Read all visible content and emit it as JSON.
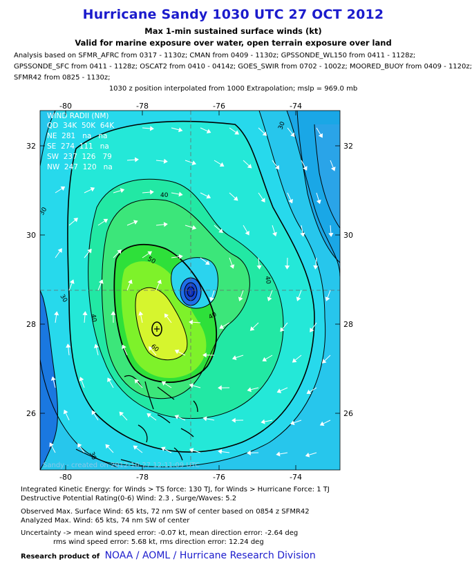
{
  "title": "Hurricane Sandy 1030 UTC 27 OCT 2012",
  "subtitle1": "Max 1-min sustained surface winds (kt)",
  "subtitle2": "Valid for marine exposure over water, open terrain exposure over land",
  "analysis_lines": [
    "Analysis based on SFMR_AFRC from 0317 - 1130z; CMAN from 0409 - 1130z; GPSSONDE_WL150 from 0411 - 1128z;",
    "GPSSONDE_SFC from 0411 - 1128z; OSCAT2 from 0410 - 0414z; GOES_SWIR from 0702 - 1002z; MOORED_BUOY from 0409 - 1120z;",
    "SFMR42 from 0825 - 1130z;"
  ],
  "position_line": "1030 z position interpolated from 1000 Extrapolation; mslp = 969.0 mb",
  "map": {
    "lon_ticks_top": [
      "-80",
      "-78",
      "-76",
      "-74"
    ],
    "lon_ticks_bottom": [
      "-80",
      "-78",
      "-76",
      "-74"
    ],
    "lat_ticks_left": [
      "32",
      "30",
      "28",
      "26"
    ],
    "lat_ticks_right": [
      "32",
      "30",
      "28",
      "26"
    ],
    "contour_labels": [
      "30",
      "30",
      "30",
      "30",
      "40",
      "40",
      "40",
      "40",
      "50",
      "60"
    ],
    "wind_radii": {
      "header": "WIND RADII (NM)",
      "columns": "QD  34K  50K  64K",
      "rows": [
        "NE  281   na   na",
        "SE  274  111   na",
        "SW  237  126   79",
        "NW  247  120   na"
      ]
    },
    "watermark": "Sandy - created on 2012-10-27 12:11:09 UTC",
    "colors": {
      "ocean_deep": "#1aa7e6",
      "band_25": "#27c6ec",
      "band_30": "#27d9ec",
      "band_35": "#24e8d8",
      "band_40": "#22e8a4",
      "band_45": "#3ce67a",
      "band_50": "#2ee03a",
      "band_55": "#7ef22a",
      "band_60": "#d6f52e",
      "center_blue": "#1e6ee8",
      "center_dark": "#0b2fc0",
      "land": "#1a78e0"
    }
  },
  "bottom_lines_1": [
    "Integrated Kinetic Energy: for Winds > TS force: 130 TJ, for Winds > Hurricane Force: 1 TJ",
    "Destructive Potential Rating(0-6)  Wind: 2.3 , Surge/Waves: 5.2"
  ],
  "bottom_lines_2": [
    "Observed Max. Surface Wind: 65 kts, 72 nm SW of center based on 0854 z SFMR42",
    "Analyzed Max. Wind: 65 kts, 74 nm SW of center"
  ],
  "bottom_lines_3": [
    "Uncertainty -> mean wind speed error:  -0.07 kt, mean direction error:  -2.64 deg",
    "rms wind speed error: 5.68 kt, rms direction error: 12.24 deg"
  ],
  "credit": {
    "label": "Research product of",
    "org": "NOAA / AOML / Hurricane Research Division"
  }
}
